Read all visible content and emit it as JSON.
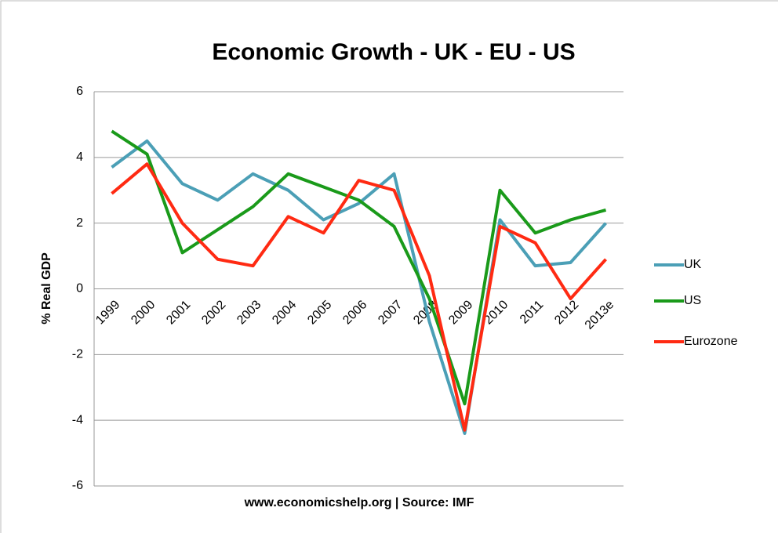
{
  "chart_data": {
    "type": "line",
    "title": "Economic Growth - UK - EU - US",
    "y_label": "% Real GDP",
    "x_label": "www.economicshelp.org | Source: IMF",
    "categories": [
      "1999",
      "2000",
      "2001",
      "2002",
      "2003",
      "2004",
      "2005",
      "2006",
      "2007",
      "2008",
      "2009",
      "2010",
      "2011",
      "2012",
      "2013e"
    ],
    "series": [
      {
        "name": "UK",
        "color": "#4b9fb6",
        "values": [
          3.7,
          4.5,
          3.2,
          2.7,
          3.5,
          3.0,
          2.1,
          2.6,
          3.5,
          -1.0,
          -4.4,
          2.1,
          0.7,
          0.8,
          2.0
        ]
      },
      {
        "name": "US",
        "color": "#1a9a1a",
        "values": [
          4.8,
          4.1,
          1.1,
          1.8,
          2.5,
          3.5,
          3.1,
          2.7,
          1.9,
          -0.3,
          -3.5,
          3.0,
          1.7,
          2.1,
          2.4
        ]
      },
      {
        "name": "Eurozone",
        "color": "#ff2a12",
        "values": [
          2.9,
          3.8,
          2.0,
          0.9,
          0.7,
          2.2,
          1.7,
          3.3,
          3.0,
          0.4,
          -4.3,
          1.9,
          1.4,
          -0.3,
          0.9
        ]
      }
    ],
    "ylim": [
      -6,
      6
    ],
    "yticks": [
      -6,
      -4,
      -2,
      0,
      2,
      4,
      6
    ],
    "grid": true,
    "legend": "right"
  }
}
